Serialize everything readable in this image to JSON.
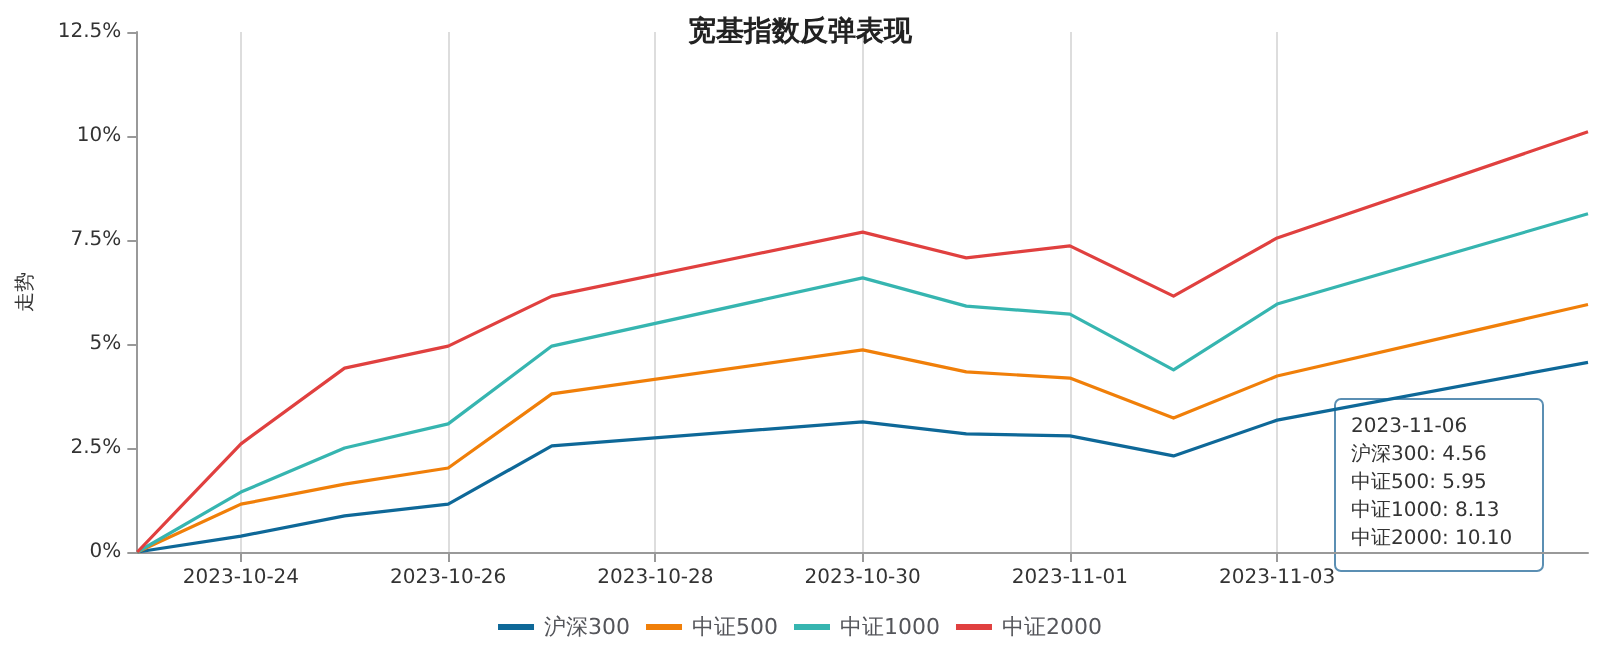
{
  "chart_data": {
    "type": "line",
    "title": "宽基指数反弹表现",
    "ylabel": "走势",
    "x": [
      "2023-10-23",
      "2023-10-24",
      "2023-10-25",
      "2023-10-26",
      "2023-10-27",
      "2023-10-30",
      "2023-10-31",
      "2023-11-01",
      "2023-11-02",
      "2023-11-03",
      "2023-11-06"
    ],
    "xlim": [
      "2023-10-23",
      "2023-11-06"
    ],
    "xticks": [
      {
        "value": "2023-10-24",
        "label": "2023-10-24"
      },
      {
        "value": "2023-10-26",
        "label": "2023-10-26"
      },
      {
        "value": "2023-10-28",
        "label": "2023-10-28"
      },
      {
        "value": "2023-10-30",
        "label": "2023-10-30"
      },
      {
        "value": "2023-11-01",
        "label": "2023-11-01"
      },
      {
        "value": "2023-11-03",
        "label": "2023-11-03"
      }
    ],
    "ylim": [
      0,
      12.5
    ],
    "yticks": [
      {
        "value": 0,
        "label": "0%"
      },
      {
        "value": 2.5,
        "label": "2.5%"
      },
      {
        "value": 5,
        "label": "5%"
      },
      {
        "value": 7.5,
        "label": "7.5%"
      },
      {
        "value": 10,
        "label": "10%"
      },
      {
        "value": 12.5,
        "label": "12.5%"
      }
    ],
    "series": [
      {
        "name": "沪深300",
        "color": "#0e6898",
        "values": [
          0,
          0.38,
          0.87,
          1.15,
          2.55,
          3.13,
          2.84,
          2.79,
          2.31,
          3.17,
          4.56
        ]
      },
      {
        "name": "中证500",
        "color": "#f07f09",
        "values": [
          0,
          1.15,
          1.63,
          2.02,
          3.8,
          4.86,
          4.33,
          4.18,
          3.22,
          4.23,
          5.95
        ]
      },
      {
        "name": "中证1000",
        "color": "#36b5b0",
        "values": [
          0,
          1.44,
          2.5,
          3.08,
          4.95,
          6.59,
          5.91,
          5.72,
          4.38,
          5.96,
          8.13
        ]
      },
      {
        "name": "中证2000",
        "color": "#e0403f",
        "values": [
          0,
          2.6,
          4.42,
          4.95,
          6.15,
          7.69,
          7.07,
          7.36,
          6.15,
          7.55,
          10.1
        ]
      }
    ],
    "annotations": [
      "2023-11-06",
      "沪深300: 4.56",
      "中证500: 5.95",
      "中证1000: 8.13",
      "中证2000: 10.10"
    ],
    "grid": "x",
    "legend": "bottom",
    "marker": "none",
    "line_style": "solid"
  }
}
